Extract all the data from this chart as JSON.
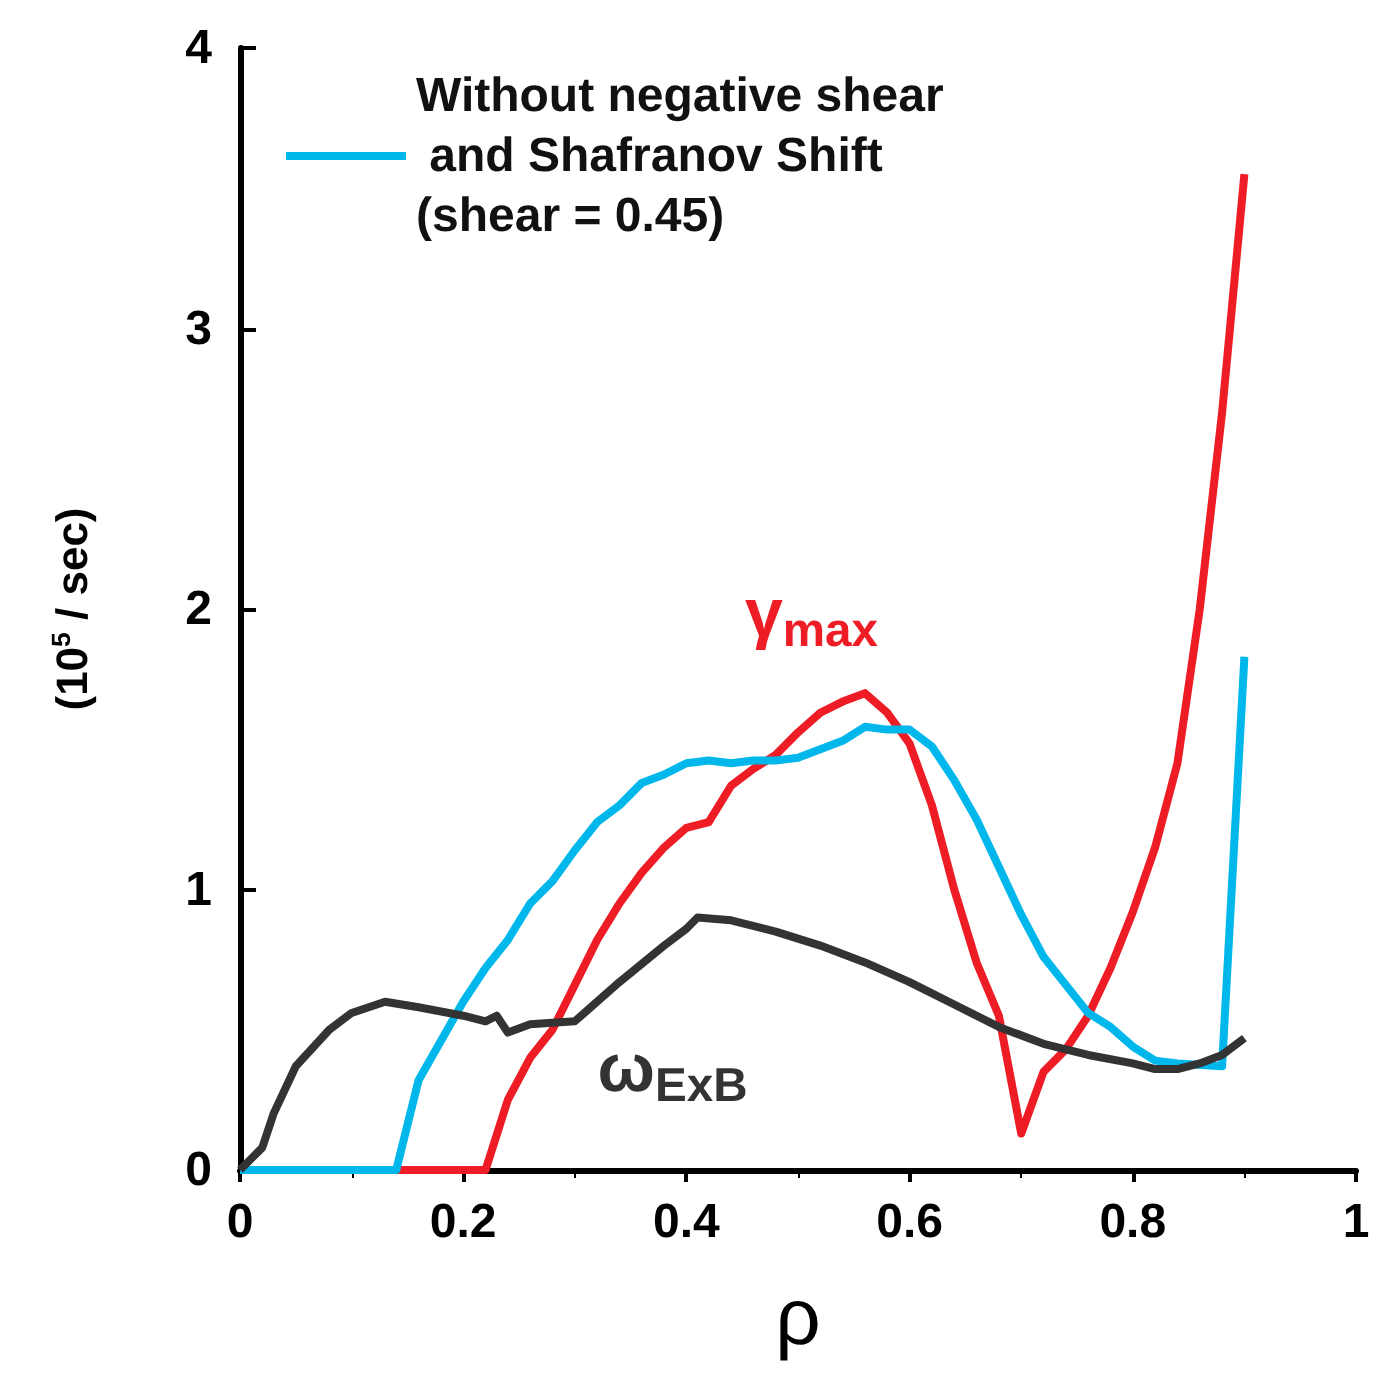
{
  "chart_data": {
    "type": "line",
    "xlabel": "ρ",
    "ylabel": "(10$^{5}$ / sec)",
    "xlim": [
      0,
      1
    ],
    "xticks": [
      0,
      0.2,
      0.4,
      0.6,
      0.8,
      1
    ],
    "ylim": [
      0,
      4
    ],
    "yticks": [
      0,
      1,
      2,
      3,
      4
    ],
    "grid": false,
    "legend": "top left",
    "marker": "none",
    "line_style": "solid",
    "series": [
      {
        "name": "γ$_{max}$",
        "color": "#ee1c24",
        "x": [
          0,
          0.22,
          0.24,
          0.26,
          0.28,
          0.3,
          0.32,
          0.34,
          0.36,
          0.38,
          0.4,
          0.42,
          0.44,
          0.46,
          0.48,
          0.5,
          0.52,
          0.54,
          0.56,
          0.58,
          0.6,
          0.62,
          0.64,
          0.66,
          0.68,
          0.7,
          0.72,
          0.74,
          0.76,
          0.78,
          0.8,
          0.82,
          0.84,
          0.86,
          0.88,
          0.9
        ],
        "values": [
          0,
          0,
          0.25,
          0.4,
          0.5,
          0.66,
          0.82,
          0.95,
          1.06,
          1.15,
          1.22,
          1.24,
          1.37,
          1.43,
          1.48,
          1.56,
          1.63,
          1.67,
          1.7,
          1.63,
          1.52,
          1.3,
          1.0,
          0.74,
          0.55,
          0.13,
          0.35,
          0.43,
          0.55,
          0.72,
          0.92,
          1.15,
          1.45,
          2.0,
          2.7,
          3.55
        ]
      },
      {
        "name": "Without negative shear\n and Shafranov Shift\n(shear = 0.45)",
        "color": "#00b7eb",
        "x": [
          0,
          0.14,
          0.16,
          0.2,
          0.22,
          0.24,
          0.26,
          0.28,
          0.3,
          0.32,
          0.34,
          0.36,
          0.38,
          0.4,
          0.42,
          0.44,
          0.46,
          0.48,
          0.5,
          0.52,
          0.54,
          0.56,
          0.58,
          0.6,
          0.62,
          0.64,
          0.66,
          0.68,
          0.7,
          0.72,
          0.74,
          0.76,
          0.78,
          0.8,
          0.82,
          0.84,
          0.88,
          0.9
        ],
        "values": [
          0,
          0,
          0.32,
          0.6,
          0.72,
          0.82,
          0.95,
          1.03,
          1.14,
          1.24,
          1.3,
          1.38,
          1.41,
          1.45,
          1.46,
          1.45,
          1.46,
          1.46,
          1.47,
          1.5,
          1.53,
          1.58,
          1.57,
          1.57,
          1.51,
          1.39,
          1.25,
          1.08,
          0.91,
          0.76,
          0.66,
          0.56,
          0.51,
          0.44,
          0.39,
          0.38,
          0.37,
          1.83
        ]
      },
      {
        "name": "ω$_{ExB}$",
        "color": "#333333",
        "x": [
          0,
          0.02,
          0.03,
          0.05,
          0.08,
          0.1,
          0.13,
          0.16,
          0.2,
          0.22,
          0.23,
          0.24,
          0.26,
          0.3,
          0.34,
          0.38,
          0.4,
          0.41,
          0.44,
          0.48,
          0.52,
          0.56,
          0.6,
          0.64,
          0.68,
          0.72,
          0.76,
          0.8,
          0.82,
          0.84,
          0.86,
          0.88,
          0.9
        ],
        "values": [
          0,
          0.08,
          0.2,
          0.37,
          0.5,
          0.56,
          0.6,
          0.58,
          0.55,
          0.53,
          0.55,
          0.49,
          0.52,
          0.53,
          0.67,
          0.8,
          0.86,
          0.9,
          0.89,
          0.85,
          0.8,
          0.74,
          0.67,
          0.59,
          0.51,
          0.45,
          0.41,
          0.38,
          0.36,
          0.36,
          0.38,
          0.41,
          0.47
        ]
      }
    ]
  }
}
